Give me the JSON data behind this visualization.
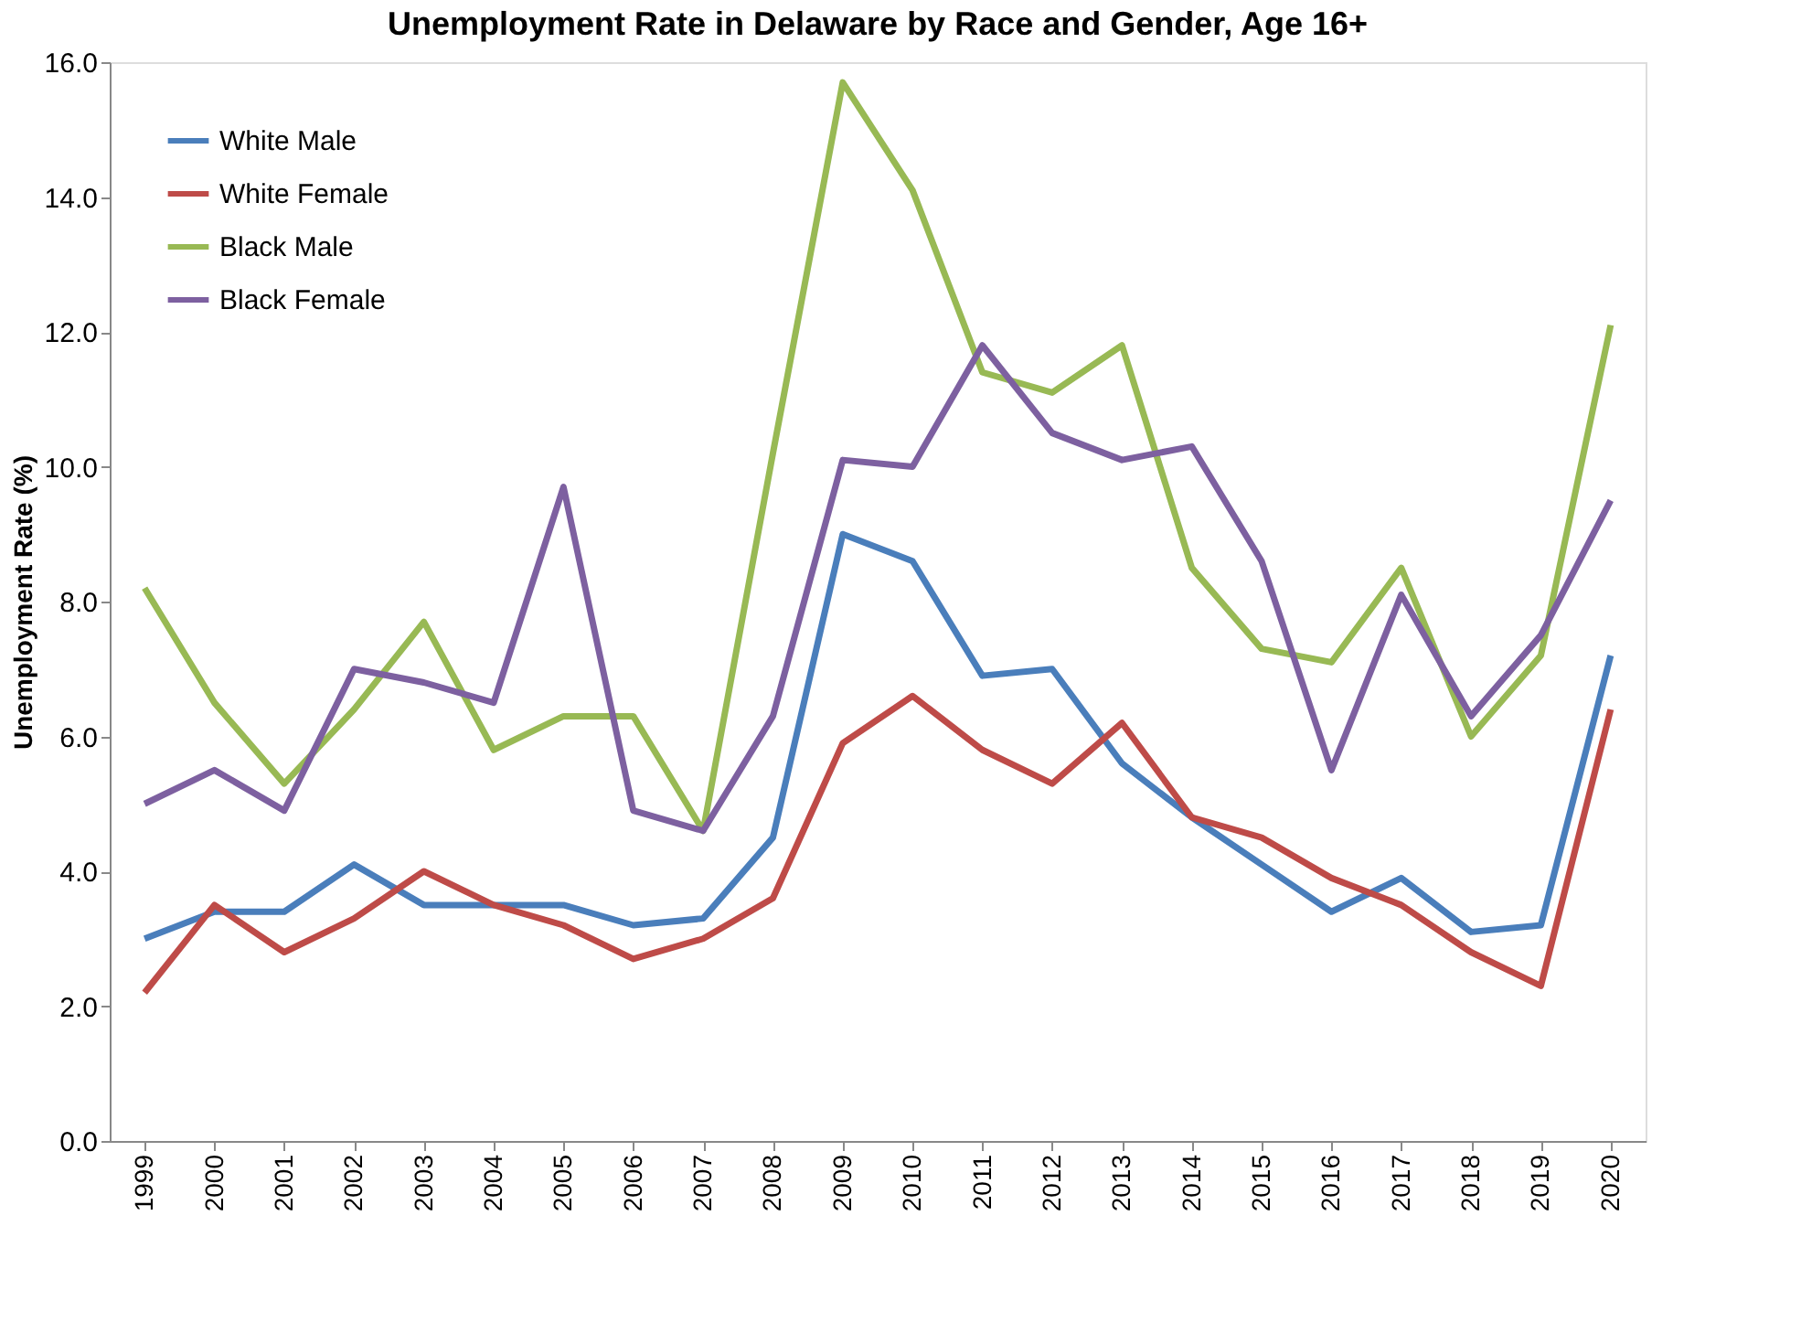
{
  "chart_data": {
    "type": "line",
    "title": "Unemployment Rate in Delaware by Race and Gender, Age 16+",
    "ylabel": "Unemployment Rate (%)",
    "categories": [
      "1999",
      "2000",
      "2001",
      "2002",
      "2003",
      "2004",
      "2005",
      "2006",
      "2007",
      "2008",
      "2009",
      "2010",
      "2011",
      "2012",
      "2013",
      "2014",
      "2015",
      "2016",
      "2017",
      "2018",
      "2019",
      "2020"
    ],
    "series": [
      {
        "name": "White Male",
        "color": "#4a7ebb",
        "values": [
          3.0,
          3.4,
          3.4,
          4.1,
          3.5,
          3.5,
          3.5,
          3.2,
          3.3,
          4.5,
          9.0,
          8.6,
          6.9,
          7.0,
          5.6,
          4.8,
          4.1,
          3.4,
          3.9,
          3.1,
          3.2,
          7.2
        ]
      },
      {
        "name": "White Female",
        "color": "#be4b48",
        "values": [
          2.2,
          3.5,
          2.8,
          3.3,
          4.0,
          3.5,
          3.2,
          2.7,
          3.0,
          3.6,
          5.9,
          6.6,
          5.8,
          5.3,
          6.2,
          4.8,
          4.5,
          3.9,
          3.5,
          2.8,
          2.3,
          6.4
        ]
      },
      {
        "name": "Black Male",
        "color": "#98b954",
        "values": [
          8.2,
          6.5,
          5.3,
          6.4,
          7.7,
          5.8,
          6.3,
          6.3,
          4.6,
          10.2,
          15.7,
          14.1,
          11.4,
          11.1,
          11.8,
          8.5,
          7.3,
          7.1,
          8.5,
          6.0,
          7.2,
          12.1
        ]
      },
      {
        "name": "Black Female",
        "color": "#7d60a0",
        "values": [
          5.0,
          5.5,
          4.9,
          7.0,
          6.8,
          6.5,
          9.7,
          4.9,
          4.6,
          6.3,
          10.1,
          10.0,
          11.8,
          10.5,
          10.1,
          10.3,
          8.6,
          5.5,
          8.1,
          6.3,
          7.5,
          9.5
        ]
      }
    ],
    "ylim": [
      0,
      16
    ],
    "yticks": [
      {
        "value": 0,
        "label": "0.0"
      },
      {
        "value": 2,
        "label": "2.0"
      },
      {
        "value": 4,
        "label": "4.0"
      },
      {
        "value": 6,
        "label": "6.0"
      },
      {
        "value": 8,
        "label": "8.0"
      },
      {
        "value": 10,
        "label": "10.0"
      },
      {
        "value": 12,
        "label": "12.0"
      },
      {
        "value": 14,
        "label": "14.0"
      },
      {
        "value": 16,
        "label": "16.0"
      }
    ],
    "grid": false,
    "legend": "top left",
    "marker": "none",
    "line_style": "solid"
  }
}
